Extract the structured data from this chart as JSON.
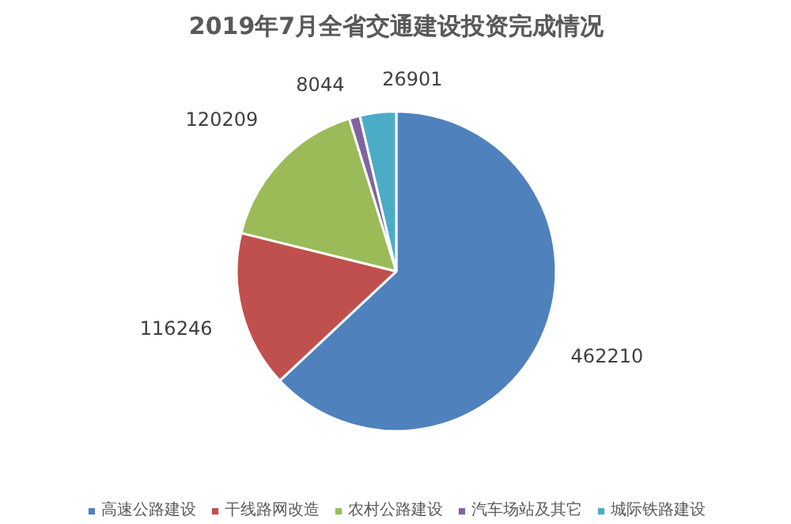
{
  "chart_data": {
    "type": "pie",
    "title": "2019年7月全省交通建设投资完成情况",
    "categories": [
      "高速公路建设",
      "干线路网改造",
      "农村公路建设",
      "汽车场站及其它",
      "城际铁路建设"
    ],
    "values": [
      462210,
      116246,
      120209,
      8044,
      26901
    ],
    "colors": [
      "#4f81bd",
      "#c0504d",
      "#9bbb59",
      "#8064a2",
      "#4bacc6"
    ],
    "data_labels": true,
    "legend": "bottom"
  }
}
